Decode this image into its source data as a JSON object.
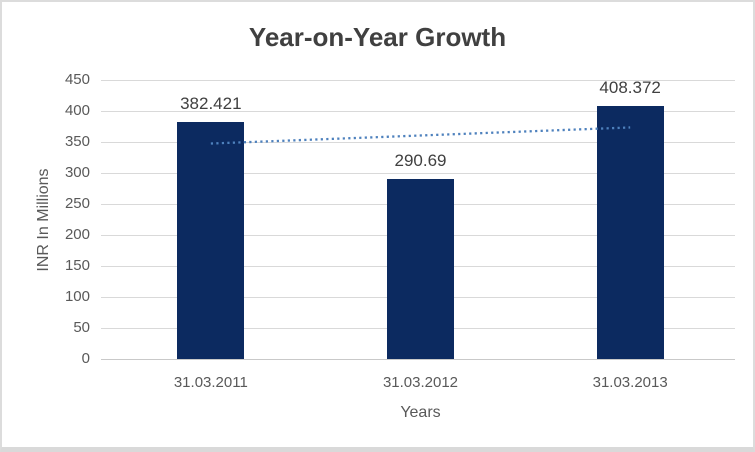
{
  "chart_data": {
    "type": "bar",
    "title": "Year-on-Year Growth",
    "xlabel": "Years",
    "ylabel": "INR In Millions",
    "categories": [
      "31.03.2011",
      "31.03.2012",
      "31.03.2013"
    ],
    "values": [
      382.421,
      290.69,
      408.372
    ],
    "data_labels": [
      "382.421",
      "290.69",
      "408.372"
    ],
    "ylim": [
      0,
      450
    ],
    "ytick_step": 50,
    "grid": true,
    "legend": "none",
    "trendline": {
      "type": "linear",
      "style": "dotted"
    },
    "colors": {
      "bar": "#0c2a60",
      "trendline": "#4e81bd",
      "gridline": "#d9d9d9",
      "axis_line": "#c9c9c9",
      "title_text": "#404040",
      "data_label_text": "#404040",
      "axis_text": "#595959",
      "background": "#ffffff",
      "border": "#dcdcdc"
    }
  }
}
